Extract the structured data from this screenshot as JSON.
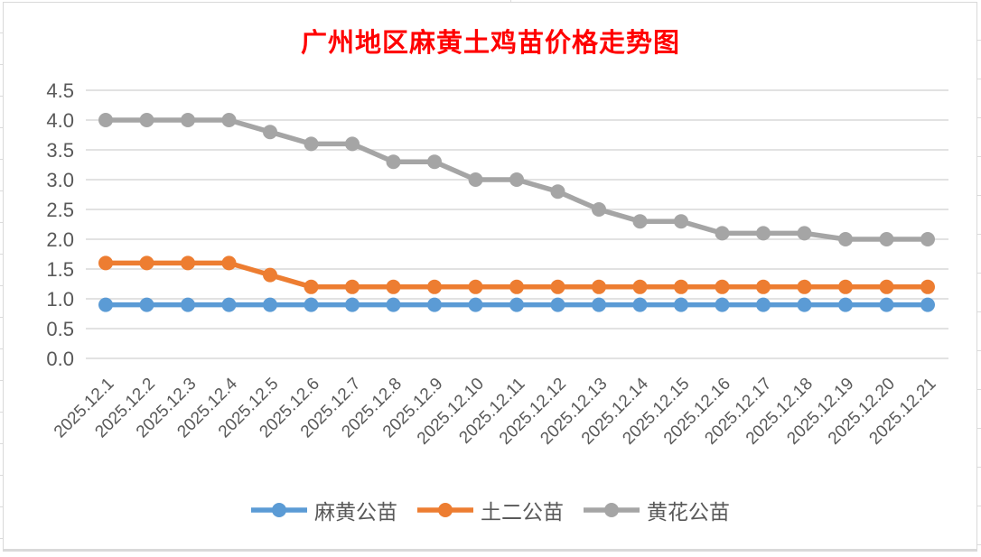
{
  "title": {
    "text": "广州地区麻黄土鸡苗价格走势图",
    "color": "#FF0000"
  },
  "chart_data": {
    "type": "line",
    "title": "广州地区麻黄土鸡苗价格走势图",
    "categories": [
      "2025.12.1",
      "2025.12.2",
      "2025.12.3",
      "2025.12.4",
      "2025.12.5",
      "2025.12.6",
      "2025.12.7",
      "2025.12.8",
      "2025.12.9",
      "2025.12.10",
      "2025.12.11",
      "2025.12.12",
      "2025.12.13",
      "2025.12.14",
      "2025.12.15",
      "2025.12.16",
      "2025.12.17",
      "2025.12.18",
      "2025.12.19",
      "2025.12.20",
      "2025.12.21"
    ],
    "series": [
      {
        "name": "麻黄公苗",
        "color": "#5B9BD5",
        "values": [
          0.9,
          0.9,
          0.9,
          0.9,
          0.9,
          0.9,
          0.9,
          0.9,
          0.9,
          0.9,
          0.9,
          0.9,
          0.9,
          0.9,
          0.9,
          0.9,
          0.9,
          0.9,
          0.9,
          0.9,
          0.9
        ]
      },
      {
        "name": "土二公苗",
        "color": "#ED7D31",
        "values": [
          1.6,
          1.6,
          1.6,
          1.6,
          1.4,
          1.2,
          1.2,
          1.2,
          1.2,
          1.2,
          1.2,
          1.2,
          1.2,
          1.2,
          1.2,
          1.2,
          1.2,
          1.2,
          1.2,
          1.2,
          1.2
        ]
      },
      {
        "name": "黄花公苗",
        "color": "#A5A5A5",
        "values": [
          4.0,
          4.0,
          4.0,
          4.0,
          3.8,
          3.6,
          3.6,
          3.3,
          3.3,
          3.0,
          3.0,
          2.8,
          2.5,
          2.3,
          2.3,
          2.1,
          2.1,
          2.1,
          2.0,
          2.0,
          2.0
        ]
      }
    ],
    "xlabel": "",
    "ylabel": "",
    "ylim": [
      0.0,
      4.5
    ],
    "ytick_step": 0.5,
    "yticks": [
      "0.0",
      "0.5",
      "1.0",
      "1.5",
      "2.0",
      "2.5",
      "3.0",
      "3.5",
      "4.0",
      "4.5"
    ],
    "grid": "horizontal",
    "legend_position": "bottom",
    "x_label_rotation_deg": 45
  },
  "colors": {
    "gridline": "#D9D9D9",
    "axis_text": "#595959",
    "frame_border": "#D9D9D9"
  }
}
